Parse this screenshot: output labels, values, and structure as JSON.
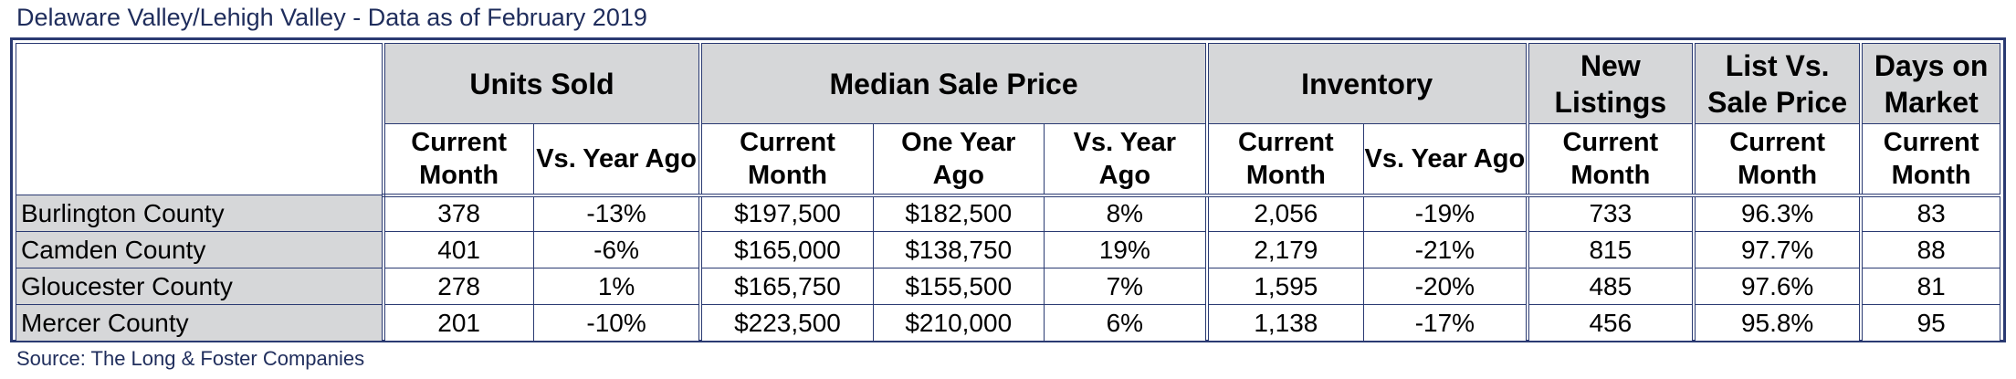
{
  "title": "Delaware Valley/Lehigh Valley - Data as of February 2019",
  "source": "Source: The Long & Foster Companies",
  "groups": {
    "units_sold": "Units Sold",
    "median_sale_price": "Median Sale Price",
    "inventory": "Inventory",
    "new_listings": "New Listings",
    "list_vs_sale": "List Vs. Sale Price",
    "days_on_market": "Days on Market"
  },
  "sub": {
    "current_month": "Current Month",
    "vs_year_ago": "Vs. Year Ago",
    "one_year_ago": "One Year Ago"
  },
  "rows": [
    {
      "county": "Burlington County",
      "units_current": "378",
      "units_vs": "-13%",
      "price_current": "$197,500",
      "price_year_ago": "$182,500",
      "price_vs": "8%",
      "inv_current": "2,056",
      "inv_vs": "-19%",
      "new_listings": "733",
      "list_vs_sale": "96.3%",
      "dom": "83"
    },
    {
      "county": "Camden County",
      "units_current": "401",
      "units_vs": "-6%",
      "price_current": "$165,000",
      "price_year_ago": "$138,750",
      "price_vs": "19%",
      "inv_current": "2,179",
      "inv_vs": "-21%",
      "new_listings": "815",
      "list_vs_sale": "97.7%",
      "dom": "88"
    },
    {
      "county": "Gloucester County",
      "units_current": "278",
      "units_vs": "1%",
      "price_current": "$165,750",
      "price_year_ago": "$155,500",
      "price_vs": "7%",
      "inv_current": "1,595",
      "inv_vs": "-20%",
      "new_listings": "485",
      "list_vs_sale": "97.6%",
      "dom": "81"
    },
    {
      "county": "Mercer County",
      "units_current": "201",
      "units_vs": "-10%",
      "price_current": "$223,500",
      "price_year_ago": "$210,000",
      "price_vs": "6%",
      "inv_current": "1,138",
      "inv_vs": "-17%",
      "new_listings": "456",
      "list_vs_sale": "95.8%",
      "dom": "95"
    }
  ]
}
